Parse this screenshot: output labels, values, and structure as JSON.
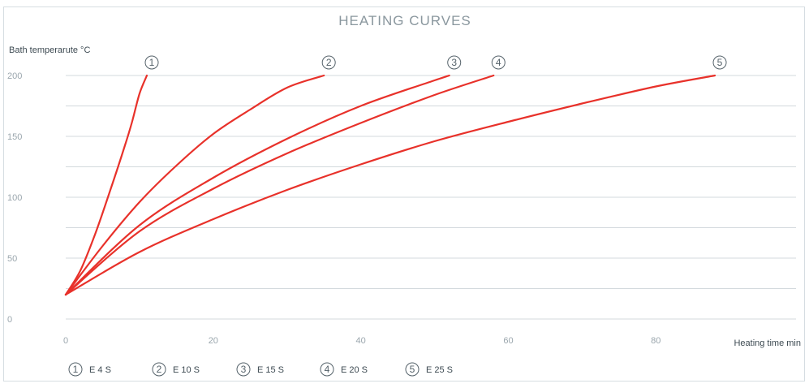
{
  "chart_data": {
    "type": "line",
    "title": "HEATING CURVES",
    "ylabel": "Bath temperarute °C",
    "xlabel": "Heating time min",
    "xlim": [
      0,
      99
    ],
    "ylim": [
      0,
      200
    ],
    "xticks": [
      0,
      20,
      40,
      60,
      80
    ],
    "yticks": [
      0,
      50,
      100,
      150,
      200
    ],
    "grid": true,
    "line_color": "#e8312a",
    "series": [
      {
        "name": "E 4 S",
        "marker": "1",
        "x": [
          0,
          2,
          4,
          6,
          8,
          9,
          10,
          11
        ],
        "y": [
          20,
          40,
          70,
          105,
          142,
          162,
          185,
          200
        ]
      },
      {
        "name": "E 10 S",
        "marker": "2",
        "x": [
          0,
          5,
          10,
          15,
          20,
          25,
          30,
          35
        ],
        "y": [
          20,
          60,
          96,
          126,
          152,
          172,
          190,
          200
        ]
      },
      {
        "name": "E 15 S",
        "marker": "3",
        "x": [
          0,
          10,
          20,
          30,
          40,
          50,
          52
        ],
        "y": [
          20,
          77,
          116,
          148,
          175,
          196,
          200
        ]
      },
      {
        "name": "E 20 S",
        "marker": "4",
        "x": [
          0,
          10,
          20,
          30,
          40,
          50,
          58
        ],
        "y": [
          20,
          72,
          107,
          136,
          161,
          184,
          200
        ]
      },
      {
        "name": "E 25 S",
        "marker": "5",
        "x": [
          0,
          10,
          20,
          30,
          40,
          50,
          60,
          70,
          80,
          88
        ],
        "y": [
          20,
          55,
          82,
          106,
          127,
          146,
          162,
          177,
          191,
          200
        ]
      }
    ]
  }
}
